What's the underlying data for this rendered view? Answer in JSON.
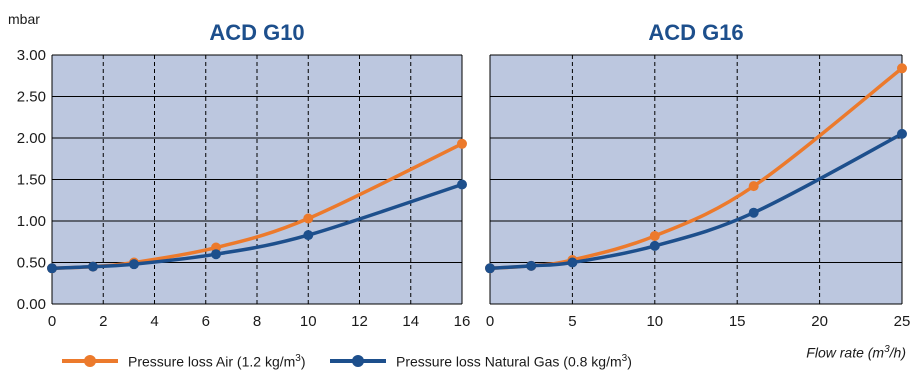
{
  "y_unit": "mbar",
  "x_unit_text": "Flow rate (m",
  "x_unit_sup": "3",
  "x_unit_close": "/h)",
  "legend": [
    {
      "label": "Pressure loss Air (1.2 kg/m",
      "sup": "3",
      "close": ")",
      "color": "#ec7a2c"
    },
    {
      "label": "Pressure loss Natural Gas (0.8 kg/m",
      "sup": "3",
      "close": ")",
      "color": "#1d4f8c"
    }
  ],
  "colors": {
    "plot_bg": "#bcc7df",
    "title": "#1d4f8c",
    "air": "#ec7a2c",
    "gas": "#1d4f8c"
  },
  "chart_data": [
    {
      "type": "line",
      "title": "ACD G10",
      "ylabel": "mbar",
      "xlabel": "",
      "xlim": [
        0,
        16
      ],
      "ylim": [
        0,
        3
      ],
      "xticks": [
        "0",
        "2",
        "4",
        "6",
        "8",
        "10",
        "12",
        "14",
        "16"
      ],
      "yticks": [
        "0.00",
        "0.50",
        "1.00",
        "1.50",
        "2.00",
        "2.50",
        "3.00"
      ],
      "vgrid_dashed": true,
      "series": [
        {
          "name": "Pressure loss Air (1.2 kg/m3)",
          "x": [
            0,
            1.6,
            3.2,
            6.4,
            10,
            16
          ],
          "y": [
            0.43,
            0.45,
            0.5,
            0.68,
            1.03,
            1.93
          ]
        },
        {
          "name": "Pressure loss Natural Gas (0.8 kg/m3)",
          "x": [
            0,
            1.6,
            3.2,
            6.4,
            10,
            16
          ],
          "y": [
            0.43,
            0.45,
            0.48,
            0.6,
            0.83,
            1.44
          ]
        }
      ]
    },
    {
      "type": "line",
      "title": "ACD G16",
      "ylabel": "",
      "xlabel": "Flow rate (m3/h)",
      "xlim": [
        0,
        25
      ],
      "ylim": [
        0,
        3
      ],
      "xticks": [
        "0",
        "5",
        "10",
        "15",
        "20",
        "25"
      ],
      "yticks": [],
      "vgrid_dashed": true,
      "series": [
        {
          "name": "Pressure loss Air (1.2 kg/m3)",
          "x": [
            0,
            2.5,
            5,
            10,
            16,
            25
          ],
          "y": [
            0.43,
            0.46,
            0.53,
            0.82,
            1.42,
            2.84
          ]
        },
        {
          "name": "Pressure loss Natural Gas (0.8 kg/m3)",
          "x": [
            0,
            2.5,
            5,
            10,
            16,
            25
          ],
          "y": [
            0.43,
            0.46,
            0.5,
            0.7,
            1.1,
            2.05
          ]
        }
      ]
    }
  ]
}
